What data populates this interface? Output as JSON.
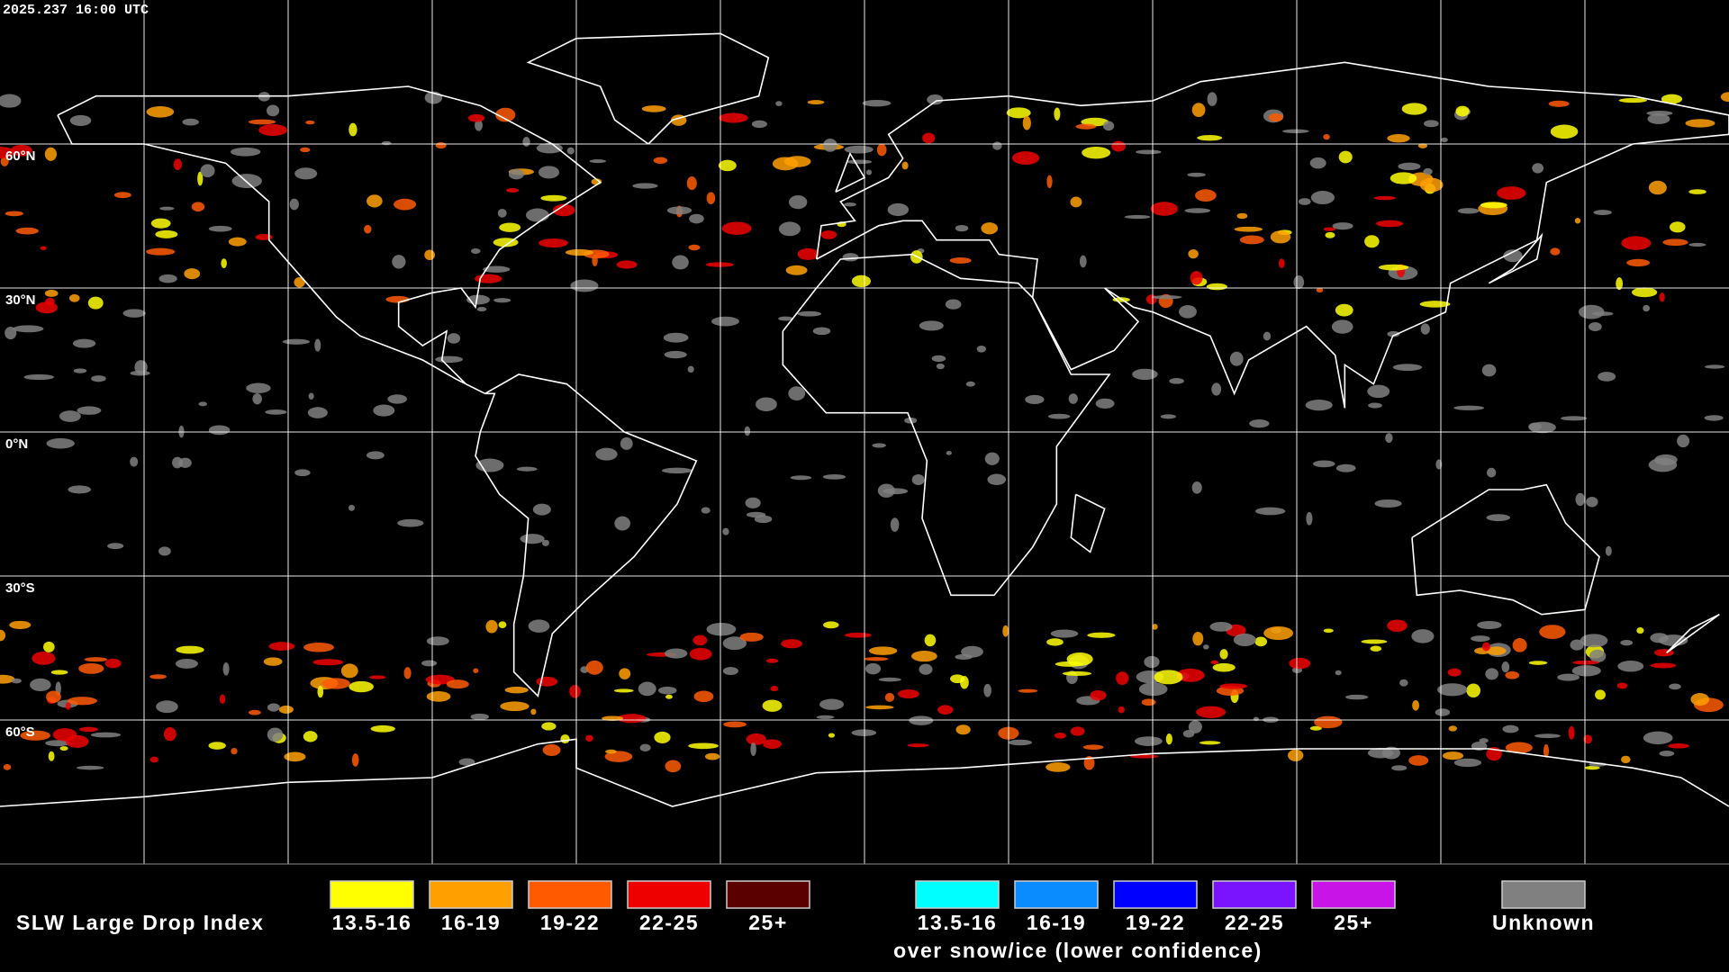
{
  "header": {
    "timestamp": "2025.237 16:00 UTC"
  },
  "map": {
    "latitude_labels": [
      "60°N",
      "30°N",
      "0°N",
      "30°S",
      "60°S"
    ]
  },
  "legend": {
    "title": "SLW Large Drop Index",
    "liquid": [
      {
        "label": "13.5-16",
        "color": "#ffff00"
      },
      {
        "label": "16-19",
        "color": "#ffa000"
      },
      {
        "label": "19-22",
        "color": "#ff5a00"
      },
      {
        "label": "22-25",
        "color": "#ee0000"
      },
      {
        "label": "25+",
        "color": "#5a0000"
      }
    ],
    "snow_ice": [
      {
        "label": "13.5-16",
        "color": "#00ffff"
      },
      {
        "label": "16-19",
        "color": "#0a8cff"
      },
      {
        "label": "19-22",
        "color": "#0000ff"
      },
      {
        "label": "22-25",
        "color": "#7a14ff"
      },
      {
        "label": "25+",
        "color": "#c814e6"
      }
    ],
    "snow_ice_note": "over snow/ice (lower confidence)",
    "unknown": {
      "label": "Unknown",
      "color": "#808080"
    }
  }
}
